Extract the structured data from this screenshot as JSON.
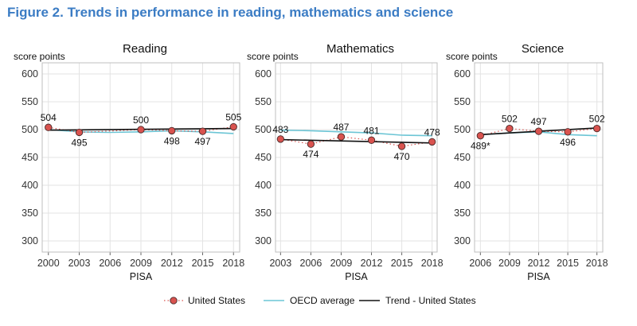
{
  "figure_title": "Figure 2. Trends in performance in reading, mathematics and science",
  "colors": {
    "us_points": "#d9534f",
    "us_dotted": "#d9534f",
    "oecd": "#6cc5d5",
    "trend": "#111111",
    "grid": "#e3e3e3",
    "frame": "#bfbfbf"
  },
  "legend": {
    "us": "United States",
    "oecd": "OECD average",
    "trend": "Trend - United States"
  },
  "chart_data": [
    {
      "type": "line",
      "title": "Reading",
      "ylabel": "score points",
      "xlabel": "PISA",
      "ylim": [
        280,
        620
      ],
      "yticks": [
        300,
        350,
        400,
        450,
        500,
        550,
        600
      ],
      "x": [
        2000,
        2003,
        2006,
        2009,
        2012,
        2015,
        2018
      ],
      "xlim": [
        1999.4,
        2018.6
      ],
      "series": [
        {
          "name": "United States",
          "x": [
            2000,
            2003,
            2009,
            2012,
            2015,
            2018
          ],
          "values": [
            504,
            495,
            500,
            498,
            497,
            505
          ],
          "labels": [
            "504",
            "495",
            "500",
            "498",
            "497",
            "505"
          ],
          "label_pos": [
            "above",
            "below",
            "above",
            "below",
            "below",
            "above"
          ]
        },
        {
          "name": "OECD average",
          "x": [
            2000,
            2003,
            2006,
            2009,
            2012,
            2015,
            2018
          ],
          "values": [
            500,
            496,
            495,
            496,
            498,
            496,
            493
          ]
        },
        {
          "name": "Trend - United States",
          "x": [
            2000,
            2018
          ],
          "values": [
            499,
            502
          ]
        }
      ]
    },
    {
      "type": "line",
      "title": "Mathematics",
      "ylabel": "score points",
      "xlabel": "PISA",
      "ylim": [
        280,
        620
      ],
      "yticks": [
        300,
        350,
        400,
        450,
        500,
        550,
        600
      ],
      "x": [
        2003,
        2006,
        2009,
        2012,
        2015,
        2018
      ],
      "xlim": [
        2002.5,
        2018.5
      ],
      "series": [
        {
          "name": "United States",
          "x": [
            2003,
            2006,
            2009,
            2012,
            2015,
            2018
          ],
          "values": [
            483,
            474,
            487,
            481,
            470,
            478
          ],
          "labels": [
            "483",
            "474",
            "487",
            "481",
            "470",
            "478"
          ],
          "label_pos": [
            "above",
            "below",
            "above",
            "above",
            "below",
            "above"
          ]
        },
        {
          "name": "OECD average",
          "x": [
            2003,
            2006,
            2009,
            2012,
            2015,
            2018
          ],
          "values": [
            499,
            498,
            496,
            494,
            490,
            489
          ]
        },
        {
          "name": "Trend - United States",
          "x": [
            2003,
            2018
          ],
          "values": [
            482,
            476
          ]
        }
      ]
    },
    {
      "type": "line",
      "title": "Science",
      "ylabel": "score points",
      "xlabel": "PISA",
      "ylim": [
        280,
        620
      ],
      "yticks": [
        300,
        350,
        400,
        450,
        500,
        550,
        600
      ],
      "x": [
        2006,
        2009,
        2012,
        2015,
        2018
      ],
      "xlim": [
        2005.4,
        2018.6
      ],
      "series": [
        {
          "name": "United States",
          "x": [
            2006,
            2009,
            2012,
            2015,
            2018
          ],
          "values": [
            489,
            502,
            497,
            496,
            502
          ],
          "labels": [
            "489*",
            "502",
            "497",
            "496",
            "502"
          ],
          "label_pos": [
            "below",
            "above",
            "above",
            "below",
            "above"
          ]
        },
        {
          "name": "OECD average",
          "x": [
            2006,
            2009,
            2012,
            2015,
            2018
          ],
          "values": [
            491,
            494,
            496,
            491,
            489
          ]
        },
        {
          "name": "Trend - United States",
          "x": [
            2006,
            2018
          ],
          "values": [
            491,
            503
          ]
        }
      ]
    }
  ]
}
